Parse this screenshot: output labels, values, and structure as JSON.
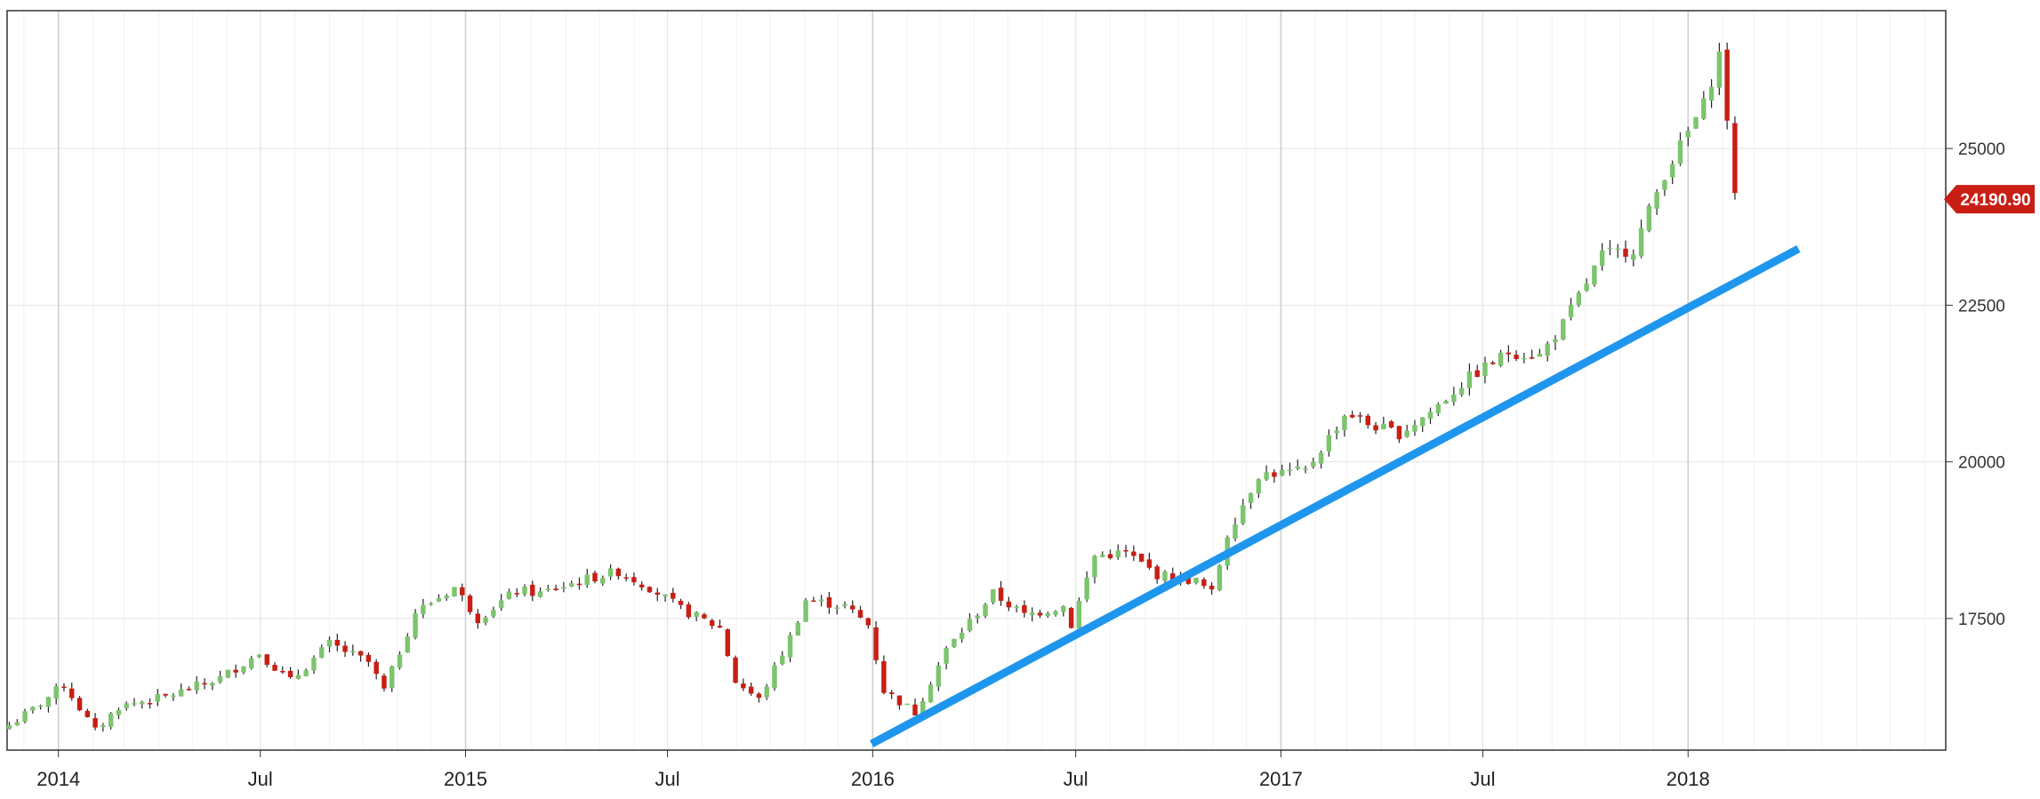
{
  "chart_data": {
    "type": "candlestick",
    "title": "",
    "xlabel": "",
    "ylabel": "",
    "x_ticks": [
      {
        "label": "2014",
        "date": "2014-01-01",
        "major": true
      },
      {
        "label": "Jul",
        "date": "2014-07-01",
        "major": false
      },
      {
        "label": "2015",
        "date": "2015-01-01",
        "major": true
      },
      {
        "label": "Jul",
        "date": "2015-07-01",
        "major": false
      },
      {
        "label": "2016",
        "date": "2016-01-01",
        "major": true
      },
      {
        "label": "Jul",
        "date": "2016-07-01",
        "major": false
      },
      {
        "label": "2017",
        "date": "2017-01-01",
        "major": true
      },
      {
        "label": "Jul",
        "date": "2017-07-01",
        "major": false
      },
      {
        "label": "2018",
        "date": "2018-01-01",
        "major": true
      }
    ],
    "y_ticks": [
      17500,
      20000,
      22500,
      25000
    ],
    "ylim": [
      15400,
      27200
    ],
    "xlim": [
      "2013-11-16",
      "2018-08-20"
    ],
    "grid": true,
    "y_axis_position": "right",
    "last_price": {
      "label": "24190.90",
      "value": 24190.9,
      "color": "#c81e14"
    },
    "colors": {
      "up": "#7dc46e",
      "down": "#c81e14",
      "wick": "#222222",
      "trendline": "#1f96ee",
      "grid": "#e6e6e6"
    },
    "trendline": {
      "start": {
        "date": "2015-12-31",
        "value": 15500
      },
      "end": {
        "date": "2018-04-10",
        "value": 23400
      }
    },
    "anchors": [
      [
        "2013-11-18",
        15800
      ],
      [
        "2013-12-09",
        16050
      ],
      [
        "2014-01-06",
        16450
      ],
      [
        "2014-02-03",
        15700
      ],
      [
        "2014-02-24",
        16100
      ],
      [
        "2014-04-07",
        16250
      ],
      [
        "2014-05-26",
        16550
      ],
      [
        "2014-06-30",
        16950
      ],
      [
        "2014-07-28",
        16500
      ],
      [
        "2014-09-01",
        17100
      ],
      [
        "2014-10-06",
        16800
      ],
      [
        "2014-10-20",
        16350
      ],
      [
        "2014-11-17",
        17600
      ],
      [
        "2014-12-22",
        18000
      ],
      [
        "2015-01-12",
        17500
      ],
      [
        "2015-02-16",
        17950
      ],
      [
        "2015-03-09",
        17900
      ],
      [
        "2015-04-13",
        18100
      ],
      [
        "2015-05-18",
        18250
      ],
      [
        "2015-06-15",
        18000
      ],
      [
        "2015-07-13",
        17650
      ],
      [
        "2015-08-17",
        17350
      ],
      [
        "2015-08-31",
        16500
      ],
      [
        "2015-09-21",
        16200
      ],
      [
        "2015-10-19",
        17200
      ],
      [
        "2015-11-02",
        17800
      ],
      [
        "2015-12-07",
        17700
      ],
      [
        "2015-12-28",
        17400
      ],
      [
        "2016-01-11",
        16350
      ],
      [
        "2016-02-08",
        16000
      ],
      [
        "2016-03-07",
        17000
      ],
      [
        "2016-04-18",
        17900
      ],
      [
        "2016-05-16",
        17550
      ],
      [
        "2016-06-20",
        17700
      ],
      [
        "2016-06-27",
        17400
      ],
      [
        "2016-07-18",
        18500
      ],
      [
        "2016-08-15",
        18550
      ],
      [
        "2016-09-12",
        18200
      ],
      [
        "2016-10-17",
        18100
      ],
      [
        "2016-10-31",
        17900
      ],
      [
        "2016-11-14",
        18850
      ],
      [
        "2016-12-12",
        19800
      ],
      [
        "2017-01-23",
        19850
      ],
      [
        "2017-03-01",
        20800
      ],
      [
        "2017-03-20",
        20600
      ],
      [
        "2017-04-17",
        20450
      ],
      [
        "2017-05-15",
        20800
      ],
      [
        "2017-06-19",
        21350
      ],
      [
        "2017-07-24",
        21750
      ],
      [
        "2017-08-21",
        21700
      ],
      [
        "2017-09-11",
        22200
      ],
      [
        "2017-10-16",
        23300
      ],
      [
        "2017-11-13",
        23400
      ],
      [
        "2017-12-11",
        24600
      ],
      [
        "2018-01-15",
        25700
      ],
      [
        "2018-01-29",
        26500
      ],
      [
        "2018-02-05",
        25500
      ],
      [
        "2018-02-12",
        24190.9
      ]
    ]
  }
}
